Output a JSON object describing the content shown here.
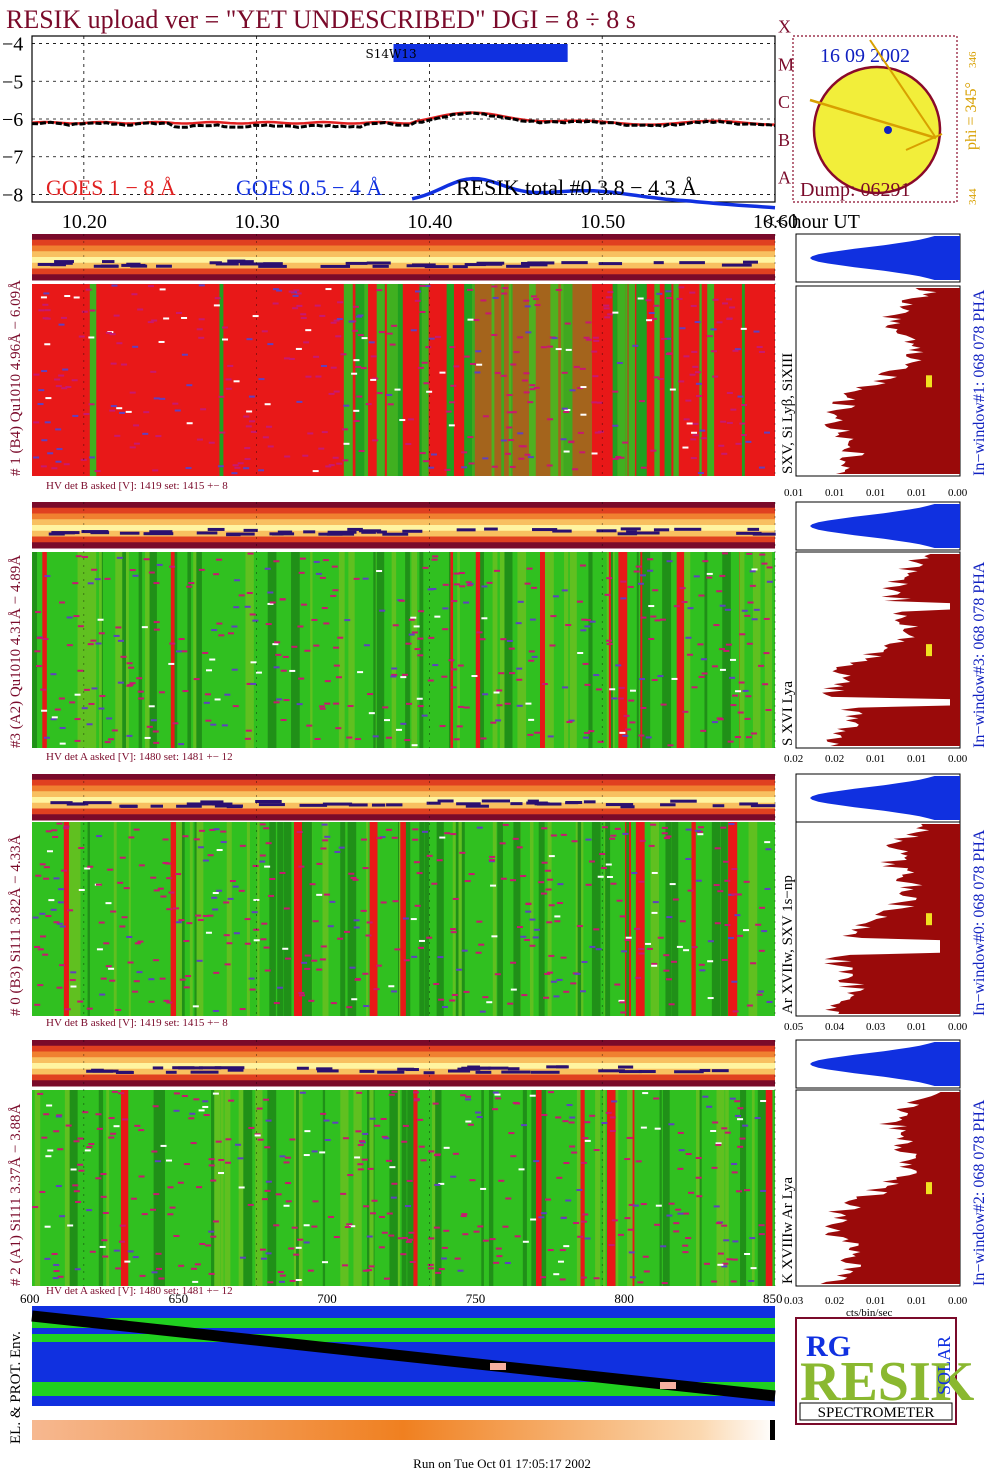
{
  "header": {
    "title": "RESIK upload ver = \"YET UNDESCRIBED\"  DGI =   8 ÷   8 s",
    "title_color": "#7a0a2a"
  },
  "colors": {
    "goes_long": "#e02020",
    "goes_short": "#1030e0",
    "resik_total": "#000000",
    "label_blue": "#1020c0",
    "label_dark": "#7a0a2a",
    "sun_fill": "#f2ee3a",
    "sun_edge": "#8a0a2a",
    "arrow": "#d8a000",
    "spectrum_red": "#9a0a0a",
    "pha_blue": "#1030e0",
    "strip_green": "#30c020",
    "strip_red": "#e81818",
    "strip_magenta": "#c81870",
    "env_blue": "#1030e0",
    "env_green": "#20d020",
    "logo_orange": "#f08020"
  },
  "goes": {
    "y_axis_label": "",
    "y_ticks": [
      "−4",
      "−5",
      "−6",
      "−7",
      "−8"
    ],
    "x_ticks": [
      "10.20",
      "10.30",
      "10.40",
      "10.50",
      "10.60"
    ],
    "x_unit_label": "<< hour UT",
    "flare_classes": [
      "A",
      "B",
      "C",
      "M",
      "X"
    ],
    "legend": {
      "long": "GOES 1 − 8 Å",
      "short": "GOES 0.5 − 4 Å",
      "resik": "RESIK total #0  3.8 − 4.3 Å"
    },
    "bar_label": "S14W13",
    "bar_interval_hours": [
      10.385,
      10.48
    ],
    "time_range_hours": [
      10.17,
      10.6
    ],
    "ylim": [
      -8.2,
      -3.8
    ]
  },
  "sun": {
    "date": "16 09 2002",
    "phi_label": "phi = 345°",
    "phi_top": "346",
    "phi_bottom": "344",
    "dump": "Dump: 06291"
  },
  "channels": [
    {
      "id": "ch1",
      "left_label": "# 1 (B4) Qu1010 4.96Å − 6.09Å",
      "right_label": "SXV, Si Lyβ, SiXIII",
      "window_label": "In−window#1:  068 078 PHA",
      "hv_label": "HV det B asked [V]:  1419 set:  1415  +−    8",
      "spectrum_ticks": [
        "0.01",
        "0.01",
        "0.01",
        "0.01",
        "0.00"
      ],
      "mode": "red"
    },
    {
      "id": "ch3",
      "left_label": "#3 (A2) Qu1010  4.31Å − 4.89Å",
      "right_label": "S XVI Lya",
      "window_label": "In−window#3:  068 078 PHA",
      "hv_label": "HV det A asked [V]:  1480 set:  1481  +−   12",
      "spectrum_ticks": [
        "0.02",
        "0.02",
        "0.01",
        "0.01",
        "0.00"
      ],
      "mode": "green"
    },
    {
      "id": "ch0",
      "left_label": "# 0 (B3) Si111  3.82Å − 4.33Å",
      "right_label": "Ar XVIIw, SXV 1s−np",
      "window_label": "In−window#0:  068 078 PHA",
      "hv_label": "HV det B asked [V]:  1419 set:  1415  +−    8",
      "spectrum_ticks": [
        "0.05",
        "0.04",
        "0.03",
        "0.01",
        "0.00"
      ],
      "mode": "green"
    },
    {
      "id": "ch2",
      "left_label": "# 2 (A1) Si111  3.37Å − 3.88Å",
      "right_label": "K XVIIIw  Ar Lya",
      "window_label": "In−window#2:  068 078 PHA",
      "hv_label": "HV det A asked [V]:  1480 set:  1481  +−   12",
      "spectrum_ticks": [
        "0.03",
        "0.02",
        "0.01",
        "0.01",
        "0.00"
      ],
      "spectrum_unit": "cts/bin/sec",
      "mode": "green"
    }
  ],
  "env": {
    "label": "EL. & PROT. Env.",
    "x_ticks": [
      "600",
      "650",
      "700",
      "750",
      "800",
      "850"
    ]
  },
  "logo": {
    "brand_small": "RG",
    "big": "RESIK",
    "side": "SOLAR",
    "bottom": "SPECTROMETER"
  },
  "footer": {
    "run_text": "Run on Tue Oct 01 17:05:17 2002"
  }
}
